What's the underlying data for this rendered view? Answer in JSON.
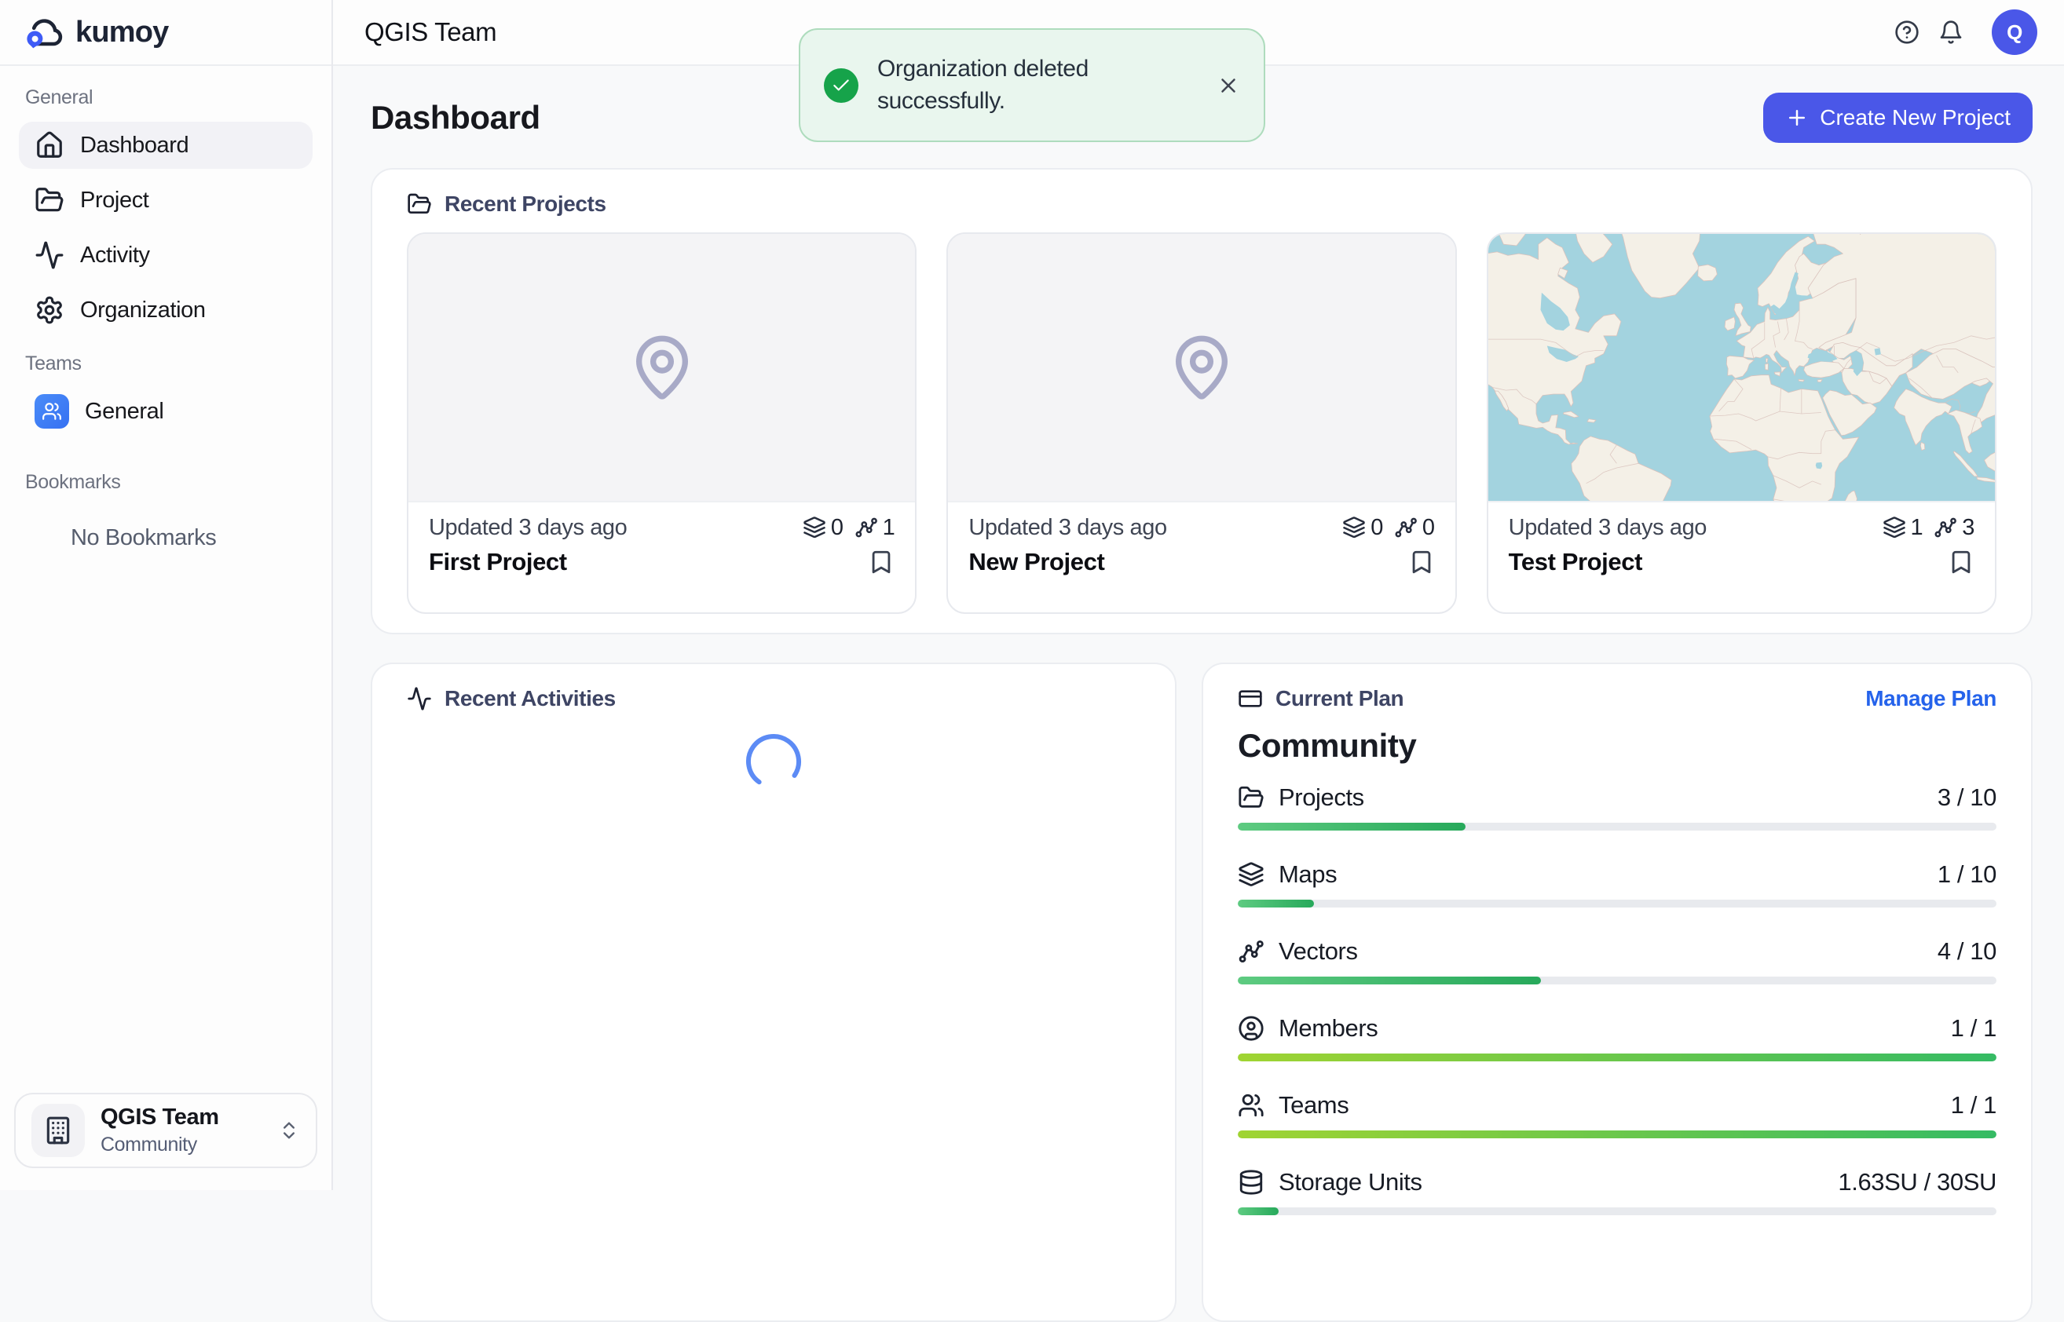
{
  "brand": {
    "name": "kumoy"
  },
  "colors": {
    "accent_blue": "#4a57e8",
    "link_blue": "#2563eb",
    "success_green": "#16a34a",
    "toast_bg": "#e9f6ee",
    "map_ocean": "#a0d2df",
    "map_land": "#f4f0e7"
  },
  "sidebar": {
    "sections": {
      "general": {
        "label": "General",
        "items": [
          {
            "label": "Dashboard",
            "icon": "home",
            "active": true
          },
          {
            "label": "Project",
            "icon": "folder-open"
          },
          {
            "label": "Activity",
            "icon": "activity"
          },
          {
            "label": "Organization",
            "icon": "gear"
          }
        ]
      },
      "teams": {
        "label": "Teams",
        "items": [
          {
            "label": "General",
            "icon": "users"
          }
        ]
      },
      "bookmarks": {
        "label": "Bookmarks",
        "empty": "No Bookmarks"
      }
    },
    "team_switcher": {
      "name": "QGIS Team",
      "plan": "Community"
    }
  },
  "topbar": {
    "title": "QGIS Team",
    "avatar_initial": "Q"
  },
  "toast": {
    "message": "Organization deleted successfully."
  },
  "page": {
    "title": "Dashboard",
    "create_button_label": "Create New Project"
  },
  "recent_projects": {
    "title": "Recent Projects",
    "cards": [
      {
        "name": "First Project",
        "updated": "Updated 3 days ago",
        "maps": "0",
        "vectors": "1",
        "thumbnail": "pin-placeholder"
      },
      {
        "name": "New Project",
        "updated": "Updated 3 days ago",
        "maps": "0",
        "vectors": "0",
        "thumbnail": "pin-placeholder"
      },
      {
        "name": "Test Project",
        "updated": "Updated 3 days ago",
        "maps": "1",
        "vectors": "3",
        "thumbnail": "world-map"
      }
    ]
  },
  "recent_activities": {
    "title": "Recent Activities",
    "state": "loading"
  },
  "current_plan": {
    "title": "Current Plan",
    "manage_label": "Manage Plan",
    "plan_name": "Community",
    "usage": [
      {
        "label": "Projects",
        "icon": "folder-open",
        "display": "3 / 10",
        "pct": 30
      },
      {
        "label": "Maps",
        "icon": "layers",
        "display": "1 / 10",
        "pct": 10
      },
      {
        "label": "Vectors",
        "icon": "vector",
        "display": "4 / 10",
        "pct": 40
      },
      {
        "label": "Members",
        "icon": "user-circle",
        "display": "1 / 1",
        "pct": 100
      },
      {
        "label": "Teams",
        "icon": "users",
        "display": "1 / 1",
        "pct": 100
      },
      {
        "label": "Storage Units",
        "icon": "database",
        "display": "1.63SU / 30SU",
        "pct": 5.4
      }
    ]
  }
}
